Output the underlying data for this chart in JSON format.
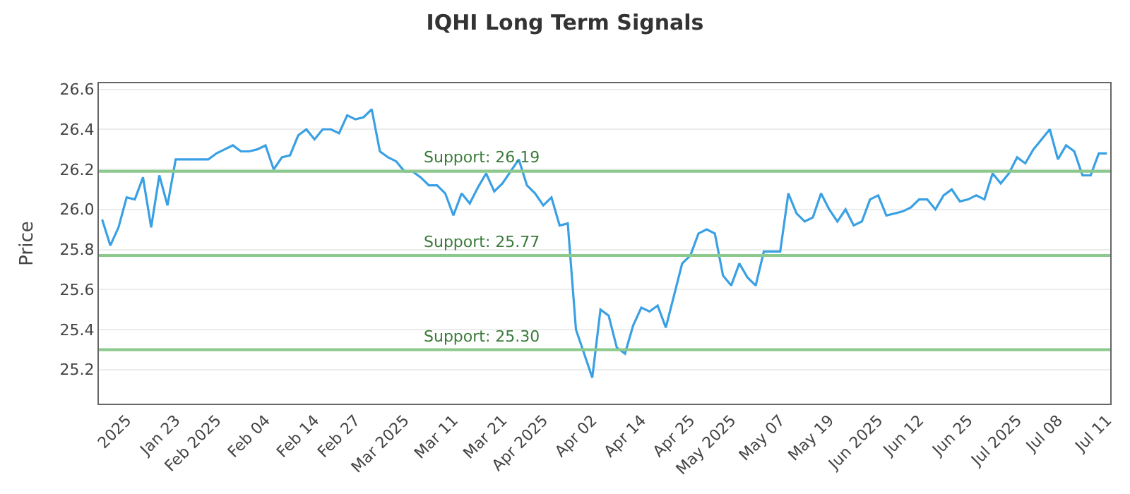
{
  "chart_data": {
    "type": "line",
    "title": "IQHI Long Term Signals",
    "ylabel": "Price",
    "categories": [
      null,
      null,
      null,
      "2025",
      null,
      null,
      null,
      null,
      null,
      "Jan 23",
      null,
      null,
      null,
      null,
      "Feb 2025",
      null,
      null,
      null,
      null,
      null,
      "Feb 04",
      null,
      null,
      null,
      null,
      null,
      "Feb 14",
      null,
      null,
      null,
      null,
      "Feb 27",
      null,
      null,
      null,
      null,
      null,
      "Mar 2025",
      null,
      null,
      null,
      null,
      null,
      "Mar 11",
      null,
      null,
      null,
      null,
      null,
      "Mar 21",
      null,
      null,
      null,
      null,
      "Apr 2025",
      null,
      null,
      null,
      null,
      null,
      "Apr 02",
      null,
      null,
      null,
      null,
      null,
      "Apr 14",
      null,
      null,
      null,
      null,
      null,
      "Apr 25",
      null,
      null,
      null,
      null,
      "May 2025",
      null,
      null,
      null,
      null,
      null,
      "May 07",
      null,
      null,
      null,
      null,
      null,
      "May 19",
      null,
      null,
      null,
      null,
      null,
      "Jun 2025",
      null,
      null,
      null,
      null,
      "Jun 12",
      null,
      null,
      null,
      null,
      null,
      "Jun 25",
      null,
      null,
      null,
      null,
      null,
      "Jul 2025",
      null,
      null,
      null,
      null,
      "Jul 08",
      null,
      null,
      null,
      null,
      null,
      "Jul 11"
    ],
    "series": [
      {
        "color": "#3aa0e4",
        "values": [
          25.95,
          25.82,
          25.91,
          26.06,
          26.05,
          26.16,
          25.91,
          26.17,
          26.02,
          26.25,
          26.25,
          26.25,
          26.25,
          26.25,
          26.28,
          26.3,
          26.32,
          26.29,
          26.29,
          26.3,
          26.32,
          26.2,
          26.26,
          26.27,
          26.37,
          26.4,
          26.35,
          26.4,
          26.4,
          26.38,
          26.47,
          26.45,
          26.46,
          26.5,
          26.29,
          26.26,
          26.24,
          26.19,
          26.19,
          26.16,
          26.12,
          26.12,
          26.08,
          25.97,
          26.08,
          26.03,
          26.11,
          26.18,
          26.09,
          26.13,
          26.19,
          26.25,
          26.12,
          26.08,
          26.02,
          26.06,
          25.92,
          25.93,
          25.4,
          25.28,
          25.16,
          25.5,
          25.47,
          25.31,
          25.28,
          25.42,
          25.51,
          25.49,
          25.52,
          25.41,
          25.57,
          25.73,
          25.77,
          25.88,
          25.9,
          25.88,
          25.67,
          25.62,
          25.73,
          25.66,
          25.62,
          25.79,
          25.79,
          25.79,
          26.08,
          25.98,
          25.94,
          25.96,
          26.08,
          26.0,
          25.94,
          26.0,
          25.92,
          25.94,
          26.05,
          26.07,
          25.97,
          25.98,
          25.99,
          26.01,
          26.05,
          26.05,
          26.0,
          26.07,
          26.1,
          26.04,
          26.05,
          26.07,
          26.05,
          26.18,
          26.13,
          26.18,
          26.26,
          26.23,
          26.3,
          26.35,
          26.4,
          26.25,
          26.32,
          26.29,
          26.17,
          26.17,
          26.28,
          26.28
        ]
      }
    ],
    "ylim": [
      25.03,
      26.63
    ],
    "yticks": [
      25.2,
      25.4,
      25.6,
      25.8,
      {
        "value": 26,
        "label": "26.0"
      },
      26.2,
      26.4,
      26.6
    ],
    "ref_lines": [
      {
        "axis": "y",
        "value": 26.19,
        "label": "Support: 26.19",
        "color": "#8cc98c"
      },
      {
        "axis": "y",
        "value": 25.77,
        "label": "Support: 25.77",
        "color": "#8cc98c"
      },
      {
        "axis": "y",
        "value": 25.3,
        "label": "Support: 25.30",
        "color": "#8cc98c"
      }
    ],
    "grid": "y",
    "marker": "none",
    "line_style": "solid"
  }
}
